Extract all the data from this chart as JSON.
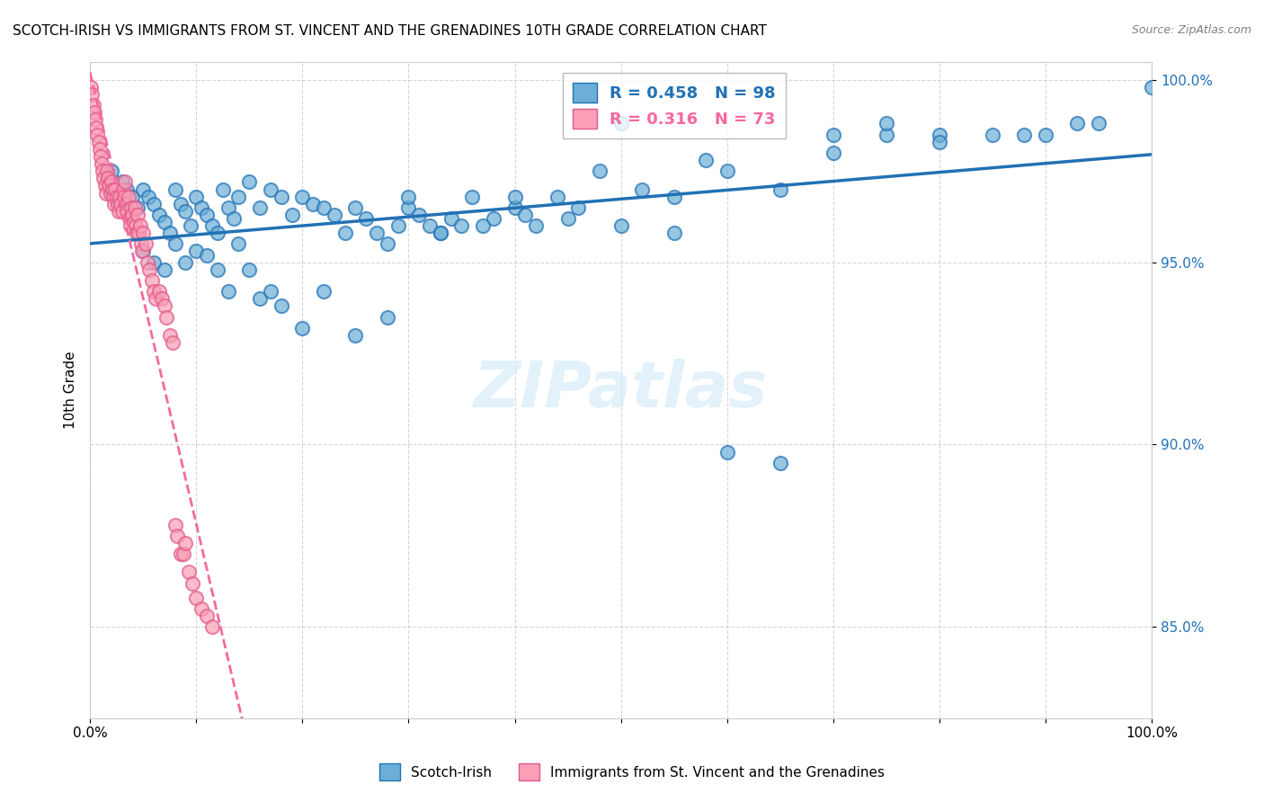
{
  "title": "SCOTCH-IRISH VS IMMIGRANTS FROM ST. VINCENT AND THE GRENADINES 10TH GRADE CORRELATION CHART",
  "source": "Source: ZipAtlas.com",
  "ylabel": "10th Grade",
  "xlim": [
    0.0,
    1.0
  ],
  "ylim": [
    0.825,
    1.005
  ],
  "yticks": [
    0.85,
    0.9,
    0.95,
    1.0
  ],
  "ytick_labels": [
    "85.0%",
    "90.0%",
    "95.0%",
    "100.0%"
  ],
  "xticks": [
    0.0,
    0.1,
    0.2,
    0.3,
    0.4,
    0.5,
    0.6,
    0.7,
    0.8,
    0.9,
    1.0
  ],
  "xtick_labels": [
    "0.0%",
    "",
    "",
    "",
    "",
    "",
    "",
    "",
    "",
    "",
    "100.0%"
  ],
  "blue_color": "#6baed6",
  "pink_color": "#fa9fb5",
  "blue_line_color": "#2171b5",
  "pink_line_color": "#f768a1",
  "legend_blue_R": "0.458",
  "legend_blue_N": "98",
  "legend_pink_R": "0.316",
  "legend_pink_N": "73",
  "watermark": "ZIPatlas",
  "blue_scatter_x": [
    0.02,
    0.03,
    0.035,
    0.04,
    0.045,
    0.05,
    0.055,
    0.06,
    0.065,
    0.07,
    0.075,
    0.08,
    0.085,
    0.09,
    0.095,
    0.1,
    0.105,
    0.11,
    0.115,
    0.12,
    0.125,
    0.13,
    0.135,
    0.14,
    0.15,
    0.16,
    0.17,
    0.18,
    0.19,
    0.2,
    0.21,
    0.22,
    0.23,
    0.24,
    0.25,
    0.26,
    0.27,
    0.28,
    0.29,
    0.3,
    0.31,
    0.32,
    0.33,
    0.34,
    0.35,
    0.36,
    0.38,
    0.4,
    0.41,
    0.42,
    0.44,
    0.46,
    0.48,
    0.5,
    0.52,
    0.55,
    0.58,
    0.6,
    0.65,
    0.7,
    0.75,
    0.8,
    0.85,
    0.9,
    0.95,
    1.0,
    0.05,
    0.06,
    0.07,
    0.08,
    0.09,
    0.1,
    0.11,
    0.12,
    0.13,
    0.14,
    0.15,
    0.16,
    0.17,
    0.18,
    0.2,
    0.22,
    0.25,
    0.28,
    0.3,
    0.33,
    0.37,
    0.4,
    0.45,
    0.5,
    0.55,
    0.6,
    0.65,
    0.7,
    0.75,
    0.8,
    0.88,
    0.93
  ],
  "blue_scatter_y": [
    0.975,
    0.972,
    0.97,
    0.968,
    0.965,
    0.97,
    0.968,
    0.966,
    0.963,
    0.961,
    0.958,
    0.97,
    0.966,
    0.964,
    0.96,
    0.968,
    0.965,
    0.963,
    0.96,
    0.958,
    0.97,
    0.965,
    0.962,
    0.968,
    0.972,
    0.965,
    0.97,
    0.968,
    0.963,
    0.968,
    0.966,
    0.965,
    0.963,
    0.958,
    0.965,
    0.962,
    0.958,
    0.955,
    0.96,
    0.965,
    0.963,
    0.96,
    0.958,
    0.962,
    0.96,
    0.968,
    0.962,
    0.965,
    0.963,
    0.96,
    0.968,
    0.965,
    0.975,
    0.988,
    0.97,
    0.968,
    0.978,
    0.975,
    0.97,
    0.985,
    0.985,
    0.985,
    0.985,
    0.985,
    0.988,
    0.998,
    0.953,
    0.95,
    0.948,
    0.955,
    0.95,
    0.953,
    0.952,
    0.948,
    0.942,
    0.955,
    0.948,
    0.94,
    0.942,
    0.938,
    0.932,
    0.942,
    0.93,
    0.935,
    0.968,
    0.958,
    0.96,
    0.968,
    0.962,
    0.96,
    0.958,
    0.898,
    0.895,
    0.98,
    0.988,
    0.983,
    0.985,
    0.988
  ],
  "pink_scatter_x": [
    0.001,
    0.002,
    0.003,
    0.004,
    0.005,
    0.006,
    0.007,
    0.008,
    0.009,
    0.01,
    0.011,
    0.012,
    0.013,
    0.014,
    0.015,
    0.016,
    0.017,
    0.018,
    0.019,
    0.02,
    0.021,
    0.022,
    0.023,
    0.024,
    0.025,
    0.026,
    0.027,
    0.028,
    0.029,
    0.03,
    0.031,
    0.032,
    0.033,
    0.034,
    0.035,
    0.036,
    0.037,
    0.038,
    0.039,
    0.04,
    0.041,
    0.042,
    0.043,
    0.044,
    0.045,
    0.046,
    0.047,
    0.048,
    0.049,
    0.05,
    0.052,
    0.054,
    0.056,
    0.058,
    0.06,
    0.062,
    0.065,
    0.068,
    0.07,
    0.072,
    0.075,
    0.078,
    0.08,
    0.082,
    0.085,
    0.088,
    0.09,
    0.093,
    0.096,
    0.1,
    0.105,
    0.11,
    0.115
  ],
  "pink_scatter_y": [
    0.998,
    0.996,
    0.993,
    0.991,
    0.989,
    0.987,
    0.985,
    0.983,
    0.981,
    0.979,
    0.977,
    0.975,
    0.973,
    0.971,
    0.969,
    0.975,
    0.973,
    0.971,
    0.969,
    0.972,
    0.97,
    0.968,
    0.966,
    0.97,
    0.968,
    0.966,
    0.964,
    0.968,
    0.966,
    0.964,
    0.97,
    0.968,
    0.972,
    0.966,
    0.964,
    0.968,
    0.962,
    0.96,
    0.965,
    0.963,
    0.961,
    0.965,
    0.96,
    0.958,
    0.963,
    0.958,
    0.96,
    0.955,
    0.953,
    0.958,
    0.955,
    0.95,
    0.948,
    0.945,
    0.942,
    0.94,
    0.942,
    0.94,
    0.938,
    0.935,
    0.93,
    0.928,
    0.878,
    0.875,
    0.87,
    0.87,
    0.873,
    0.865,
    0.862,
    0.858,
    0.855,
    0.853,
    0.85
  ]
}
